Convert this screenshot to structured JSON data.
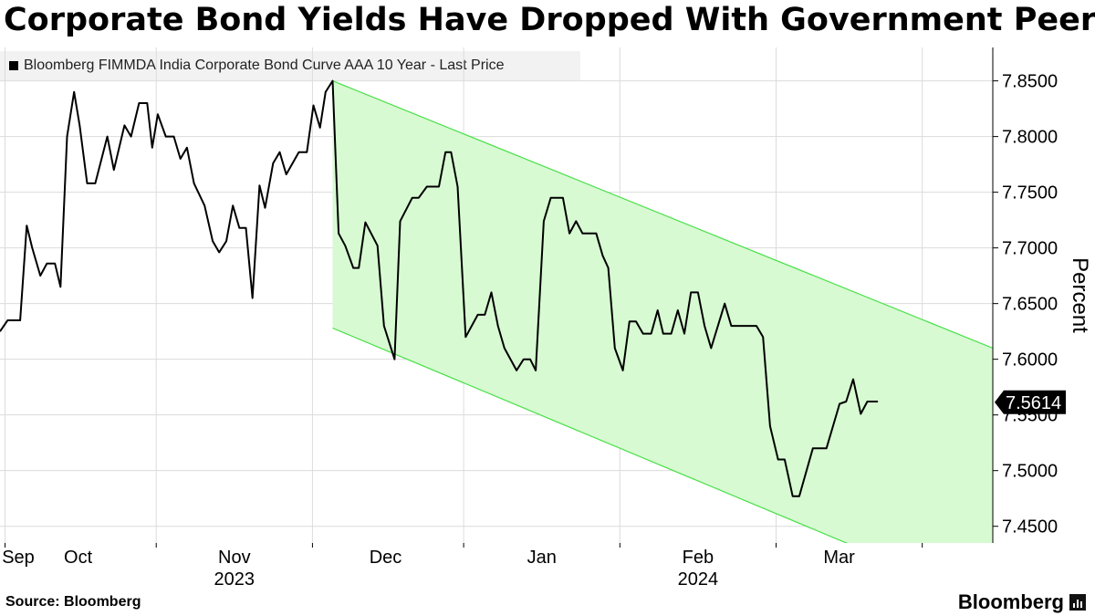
{
  "header": {
    "title": "Corporate Bond Yields Have Dropped With Government Peers"
  },
  "legend": {
    "label": "Bloomberg FIMMDA India Corporate Bond Curve AAA 10 Year - Last Price"
  },
  "footer": {
    "source": "Source: Bloomberg",
    "brand": "Bloomberg"
  },
  "colors": {
    "line": "#000000",
    "channel_fill": "#d7fad2",
    "channel_edge": "#48e048",
    "grid": "#dcdcdc"
  },
  "chart_data": {
    "type": "line",
    "title": "Corporate Bond Yields Have Dropped With Government Peers",
    "ylabel": "Percent",
    "ylim": [
      7.435,
      7.88
    ],
    "yticks": [
      7.45,
      7.5,
      7.55,
      7.6,
      7.65,
      7.7,
      7.75,
      7.8,
      7.85
    ],
    "ytick_labels": [
      "7.4500",
      "7.5000",
      "7.5500",
      "7.6000",
      "7.6500",
      "7.7000",
      "7.7500",
      "7.8000",
      "7.8500"
    ],
    "x_unit": "days since 2023-08-31",
    "xlim": [
      0,
      197
    ],
    "month_labels": [
      {
        "label": "Sep",
        "day": 0
      },
      {
        "label": "Oct",
        "day": 15.5
      },
      {
        "label": "Nov",
        "day": 46.5
      },
      {
        "label": "Dec",
        "day": 76.5
      },
      {
        "label": "Jan",
        "day": 107.5
      },
      {
        "label": "Feb",
        "day": 138.5
      },
      {
        "label": "Mar",
        "day": 166.5
      }
    ],
    "month_boundaries": [
      1,
      31,
      62,
      92,
      123,
      154,
      183
    ],
    "year_labels": [
      {
        "label": "2023",
        "day": 46.5
      },
      {
        "label": "2024",
        "day": 138.5
      }
    ],
    "last_value": 7.5614,
    "last_value_label": "7.5614",
    "channel": {
      "upper": [
        [
          66,
          7.85
        ],
        [
          197,
          7.61
        ]
      ],
      "lower": [
        [
          66,
          7.628
        ],
        [
          197,
          7.38
        ]
      ]
    },
    "series": [
      {
        "name": "Bloomberg FIMMDA India Corporate Bond Curve AAA 10 Year - Last Price",
        "points": [
          [
            0,
            7.625
          ],
          [
            1.5,
            7.635
          ],
          [
            4,
            7.635
          ],
          [
            5.3,
            7.72
          ],
          [
            6.4,
            7.7
          ],
          [
            8,
            7.675
          ],
          [
            9.3,
            7.686
          ],
          [
            10.9,
            7.686
          ],
          [
            12,
            7.665
          ],
          [
            13.3,
            7.8
          ],
          [
            14.7,
            7.84
          ],
          [
            15.8,
            7.81
          ],
          [
            17.3,
            7.758
          ],
          [
            18.9,
            7.758
          ],
          [
            21.3,
            7.8
          ],
          [
            22.6,
            7.77
          ],
          [
            24.7,
            7.81
          ],
          [
            26,
            7.8
          ],
          [
            27.6,
            7.83
          ],
          [
            29.2,
            7.83
          ],
          [
            30.2,
            7.79
          ],
          [
            31.3,
            7.82
          ],
          [
            32.9,
            7.8
          ],
          [
            34.5,
            7.8
          ],
          [
            35.8,
            7.78
          ],
          [
            37.1,
            7.79
          ],
          [
            38.5,
            7.758
          ],
          [
            40.6,
            7.738
          ],
          [
            42.2,
            7.706
          ],
          [
            43.5,
            7.696
          ],
          [
            44.9,
            7.706
          ],
          [
            46.2,
            7.738
          ],
          [
            47.5,
            7.718
          ],
          [
            48.8,
            7.718
          ],
          [
            50.1,
            7.655
          ],
          [
            51.5,
            7.756
          ],
          [
            52.6,
            7.736
          ],
          [
            54.2,
            7.776
          ],
          [
            55.5,
            7.786
          ],
          [
            56.8,
            7.766
          ],
          [
            59.3,
            7.786
          ],
          [
            60.9,
            7.786
          ],
          [
            62.2,
            7.828
          ],
          [
            63.5,
            7.808
          ],
          [
            64.6,
            7.84
          ],
          [
            66,
            7.85
          ],
          [
            67.2,
            7.713
          ],
          [
            68.5,
            7.702
          ],
          [
            70.1,
            7.682
          ],
          [
            71.2,
            7.682
          ],
          [
            72.5,
            7.723
          ],
          [
            74.9,
            7.702
          ],
          [
            76.2,
            7.63
          ],
          [
            78.3,
            7.6
          ],
          [
            79.4,
            7.724
          ],
          [
            81.8,
            7.745
          ],
          [
            83.1,
            7.745
          ],
          [
            84.7,
            7.755
          ],
          [
            87.1,
            7.755
          ],
          [
            88.4,
            7.786
          ],
          [
            89.5,
            7.786
          ],
          [
            90.8,
            7.755
          ],
          [
            92.4,
            7.62
          ],
          [
            94.8,
            7.64
          ],
          [
            96.2,
            7.64
          ],
          [
            97.5,
            7.66
          ],
          [
            98.8,
            7.63
          ],
          [
            100.1,
            7.61
          ],
          [
            102.5,
            7.59
          ],
          [
            103.9,
            7.6
          ],
          [
            105.2,
            7.6
          ],
          [
            106.3,
            7.59
          ],
          [
            107.9,
            7.724
          ],
          [
            109.3,
            7.745
          ],
          [
            111.7,
            7.745
          ],
          [
            113,
            7.713
          ],
          [
            114.3,
            7.724
          ],
          [
            115.6,
            7.713
          ],
          [
            118.3,
            7.713
          ],
          [
            119.6,
            7.693
          ],
          [
            120.7,
            7.682
          ],
          [
            122,
            7.61
          ],
          [
            123.6,
            7.59
          ],
          [
            124.9,
            7.634
          ],
          [
            126.2,
            7.634
          ],
          [
            127.6,
            7.623
          ],
          [
            129.2,
            7.623
          ],
          [
            130.5,
            7.644
          ],
          [
            131.6,
            7.623
          ],
          [
            133.2,
            7.623
          ],
          [
            134.5,
            7.644
          ],
          [
            135.8,
            7.623
          ],
          [
            137.1,
            7.66
          ],
          [
            138.5,
            7.66
          ],
          [
            139.8,
            7.63
          ],
          [
            141.1,
            7.61
          ],
          [
            143.8,
            7.65
          ],
          [
            145.1,
            7.63
          ],
          [
            148.8,
            7.63
          ],
          [
            150.1,
            7.63
          ],
          [
            151.4,
            7.62
          ],
          [
            152.8,
            7.54
          ],
          [
            154.4,
            7.51
          ],
          [
            155.7,
            7.51
          ],
          [
            157.3,
            7.477
          ],
          [
            158.6,
            7.477
          ],
          [
            161.3,
            7.52
          ],
          [
            164,
            7.52
          ],
          [
            166.6,
            7.56
          ],
          [
            167.9,
            7.562
          ],
          [
            169.3,
            7.582
          ],
          [
            170.8,
            7.551
          ],
          [
            172.1,
            7.562
          ],
          [
            174.2,
            7.562
          ]
        ]
      }
    ]
  }
}
